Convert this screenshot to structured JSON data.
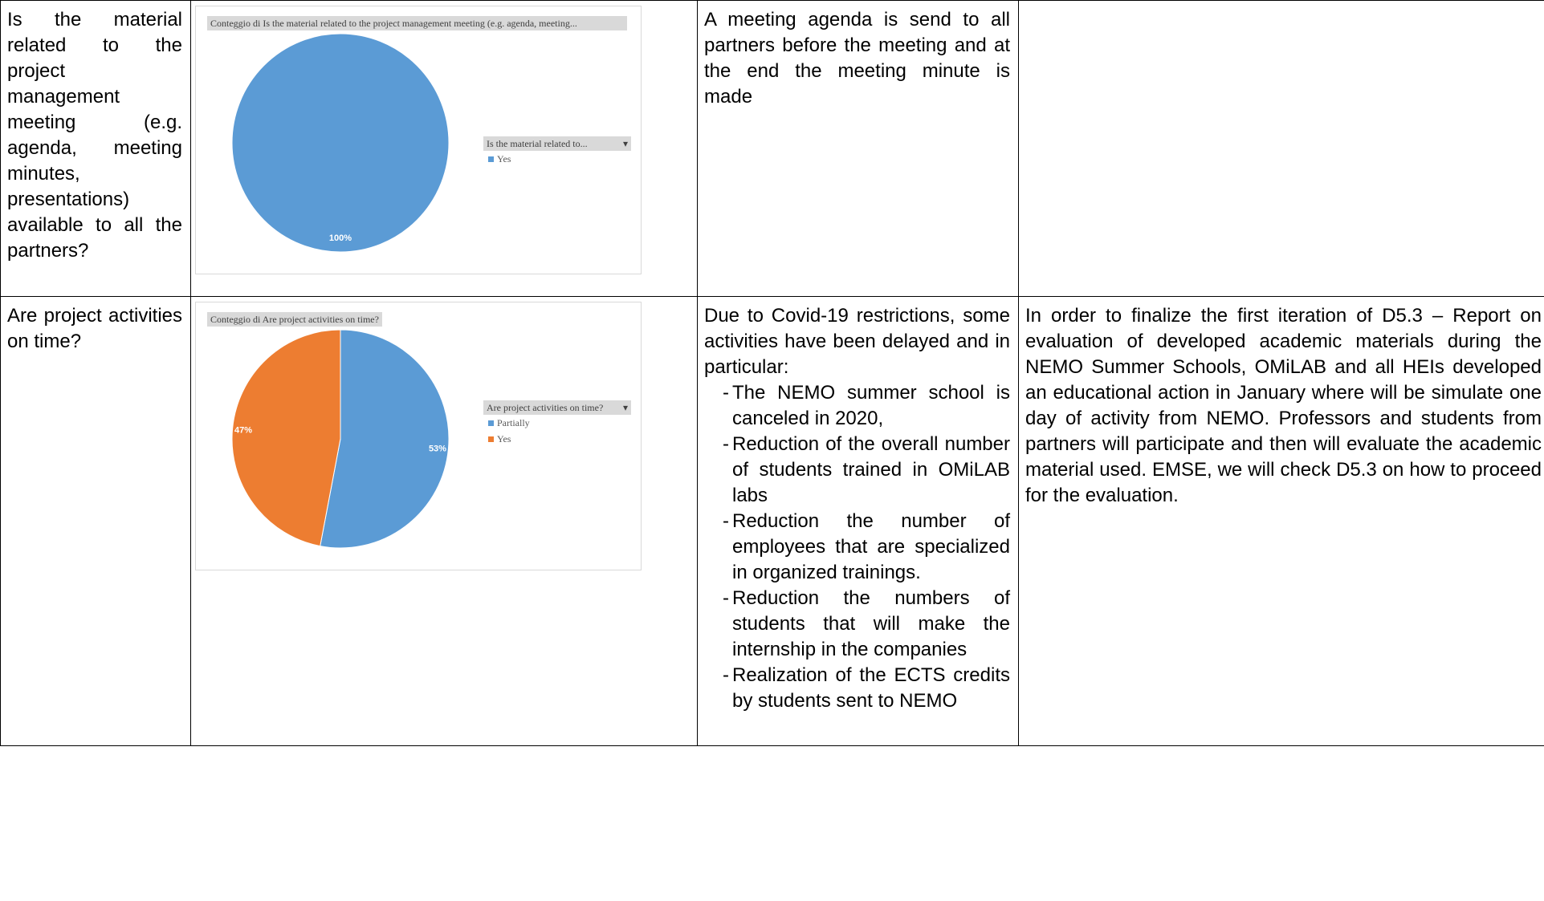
{
  "rows": [
    {
      "question": "Is the material related to the project management meeting (e.g. agenda, meeting minutes, presentations) available to all the partners?",
      "chart": {
        "title": "Conteggio di Is the material related to the project management meeting (e.g. agenda, meeting...",
        "legend_title": "Is the material related to...",
        "legend_dropdown": "▾"
      },
      "comment": "A meeting agenda is send to all partners before the meeting and at the end the meeting minute is made",
      "action": ""
    },
    {
      "question": "Are project activities on time?",
      "chart": {
        "title": "Conteggio di Are project activities on time?",
        "legend_title": "Are project activities on time?",
        "legend_dropdown": "▾"
      },
      "comment_intro": "Due to Covid-19 restrictions, some activities have been delayed and in particular:",
      "comment_bullets": [
        "The NEMO summer school is canceled in 2020,",
        "Reduction of the overall number of students trained in OMiLAB labs",
        "Reduction the number of employees that are specialized in organized trainings.",
        "Reduction the numbers of students that will make the internship in the companies",
        "Realization of the ECTS credits by students sent to NEMO"
      ],
      "bullet_marker": "-",
      "action": "In order to finalize the first iteration of D5.3 – Report on evaluation of developed academic materials during the NEMO Summer Schools, OMiLAB and all HEIs developed an educational action in January where will be simulate one day of activity from NEMO. Professors and students from partners will participate and then will evaluate the academic material used. EMSE, we will check D5.3 on how to proceed for the evaluation."
    }
  ],
  "chart_data": [
    {
      "type": "pie",
      "title": "Conteggio di Is the material related to the project management meeting (e.g. agenda, meeting...",
      "legend_title": "Is the material related to...",
      "categories": [
        "Yes"
      ],
      "values": [
        100
      ],
      "labels": [
        "100%"
      ],
      "colors": [
        "#5b9bd5"
      ],
      "legend_position": "right"
    },
    {
      "type": "pie",
      "title": "Conteggio di Are project activities on time?",
      "legend_title": "Are project activities on time?",
      "categories": [
        "Partially",
        "Yes"
      ],
      "values": [
        53,
        47
      ],
      "labels": [
        "53%",
        "47%"
      ],
      "colors": [
        "#5b9bd5",
        "#ed7d31"
      ],
      "legend_position": "right"
    }
  ]
}
